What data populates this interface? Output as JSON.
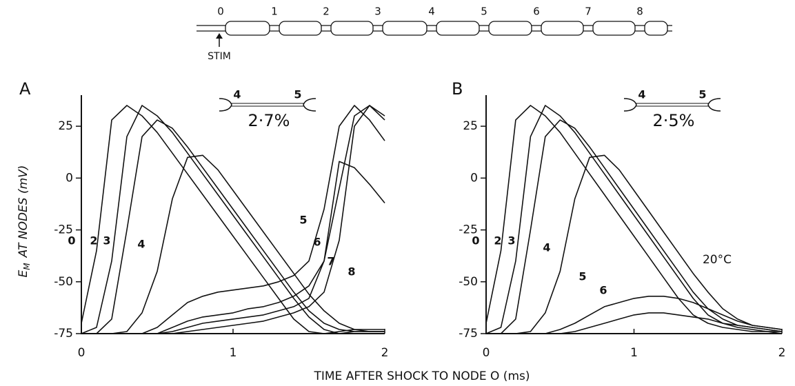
{
  "diagram": {
    "node_labels": [
      "0",
      "1",
      "2",
      "3",
      "4",
      "5",
      "6",
      "7",
      "8"
    ],
    "stim": "STIM"
  },
  "x_label": "TIME AFTER SHOCK TO NODE O (ms)",
  "chart_data": [
    {
      "type": "line",
      "panel": "A",
      "color": "#111",
      "ylabel": {
        "main": "E",
        "sub": "M",
        "rest": "AT NODES (mV)"
      },
      "inset": {
        "left": "4",
        "right": "5",
        "ratio": "2·7%"
      },
      "xlim": [
        0,
        2
      ],
      "xticks": [
        0,
        1,
        2
      ],
      "ylim": [
        -75,
        40
      ],
      "yticks": [
        -75,
        -50,
        -25,
        0,
        25
      ],
      "x": [
        0,
        0.1,
        0.2,
        0.3,
        0.4,
        0.5,
        0.6,
        0.7,
        0.8,
        0.9,
        1.0,
        1.1,
        1.2,
        1.3,
        1.4,
        1.5,
        1.6,
        1.7,
        1.8,
        1.9,
        2.0
      ],
      "series": [
        {
          "name": "0",
          "values": [
            -70,
            -35,
            28,
            35,
            30,
            22,
            12,
            2,
            -8,
            -18,
            -28,
            -38,
            -48,
            -58,
            -68,
            -74,
            -75,
            -74,
            -73,
            -73,
            -73
          ]
        },
        {
          "name": "2",
          "values": [
            -75,
            -72,
            -40,
            20,
            35,
            30,
            22,
            12,
            2,
            -8,
            -18,
            -28,
            -38,
            -48,
            -58,
            -67,
            -73,
            -75,
            -74,
            -74,
            -74
          ]
        },
        {
          "name": "3",
          "values": [
            -75,
            -75,
            -68,
            -25,
            20,
            28,
            24,
            15,
            5,
            -5,
            -15,
            -25,
            -35,
            -45,
            -55,
            -64,
            -70,
            -73,
            -74,
            -74,
            -74
          ]
        },
        {
          "name": "4",
          "values": [
            -75,
            -75,
            -75,
            -74,
            -65,
            -45,
            -10,
            10,
            11,
            4,
            -6,
            -16,
            -26,
            -36,
            -46,
            -56,
            -64,
            -70,
            -73,
            -74,
            -74
          ]
        },
        {
          "name": "5",
          "values": [
            -75,
            -75,
            -75,
            -75,
            -75,
            -72,
            -66,
            -60,
            -57,
            -55,
            -54,
            -53,
            -52,
            -50,
            -47,
            -40,
            -15,
            25,
            35,
            28,
            18
          ]
        },
        {
          "name": "6",
          "values": [
            -75,
            -75,
            -75,
            -75,
            -75,
            -75,
            -72,
            -69,
            -67,
            -66,
            -65,
            -63,
            -62,
            -60,
            -57,
            -52,
            -40,
            -5,
            30,
            35,
            28
          ]
        },
        {
          "name": "7",
          "values": [
            -75,
            -75,
            -75,
            -75,
            -75,
            -75,
            -74,
            -72,
            -70,
            -69,
            -68,
            -67,
            -66,
            -64,
            -62,
            -58,
            -40,
            8,
            5,
            -3,
            -12
          ]
        },
        {
          "name": "8",
          "values": [
            -75,
            -75,
            -75,
            -75,
            -75,
            -75,
            -75,
            -74,
            -73,
            -72,
            -71,
            -70,
            -69,
            -67,
            -65,
            -62,
            -55,
            -30,
            25,
            35,
            30
          ]
        }
      ]
    },
    {
      "type": "line",
      "panel": "B",
      "color": "#111",
      "inset": {
        "left": "4",
        "right": "5",
        "ratio": "2·5%"
      },
      "annotation": "20°C",
      "xlim": [
        0,
        2
      ],
      "xticks": [
        0,
        1,
        2
      ],
      "ylim": [
        -75,
        40
      ],
      "yticks": [
        -75,
        -50,
        -25,
        0,
        25
      ],
      "x": [
        0,
        0.1,
        0.2,
        0.3,
        0.4,
        0.5,
        0.6,
        0.7,
        0.8,
        0.9,
        1.0,
        1.1,
        1.2,
        1.3,
        1.4,
        1.5,
        1.6,
        1.7,
        1.8,
        1.9,
        2.0
      ],
      "series": [
        {
          "name": "0",
          "values": [
            -70,
            -35,
            28,
            35,
            30,
            22,
            12,
            2,
            -8,
            -18,
            -28,
            -38,
            -48,
            -58,
            -66,
            -70,
            -72,
            -73,
            -74,
            -74,
            -75
          ]
        },
        {
          "name": "2",
          "values": [
            -75,
            -72,
            -40,
            20,
            35,
            30,
            22,
            12,
            2,
            -8,
            -18,
            -28,
            -38,
            -48,
            -58,
            -66,
            -70,
            -72,
            -73,
            -74,
            -74
          ]
        },
        {
          "name": "3",
          "values": [
            -75,
            -75,
            -68,
            -25,
            20,
            28,
            24,
            15,
            5,
            -5,
            -15,
            -25,
            -35,
            -45,
            -55,
            -63,
            -68,
            -71,
            -72,
            -73,
            -74
          ]
        },
        {
          "name": "4",
          "values": [
            -75,
            -75,
            -75,
            -74,
            -65,
            -45,
            -10,
            10,
            11,
            4,
            -6,
            -16,
            -26,
            -36,
            -46,
            -55,
            -63,
            -68,
            -71,
            -72,
            -73
          ]
        },
        {
          "name": "5",
          "values": [
            -75,
            -75,
            -75,
            -75,
            -75,
            -73,
            -70,
            -66,
            -62,
            -60,
            -58,
            -57,
            -57,
            -58,
            -60,
            -63,
            -66,
            -69,
            -71,
            -72,
            -73
          ]
        },
        {
          "name": "6",
          "values": [
            -75,
            -75,
            -75,
            -75,
            -75,
            -75,
            -74,
            -72,
            -70,
            -68,
            -66,
            -65,
            -65,
            -66,
            -67,
            -68,
            -70,
            -71,
            -72,
            -73,
            -74
          ]
        }
      ]
    }
  ]
}
